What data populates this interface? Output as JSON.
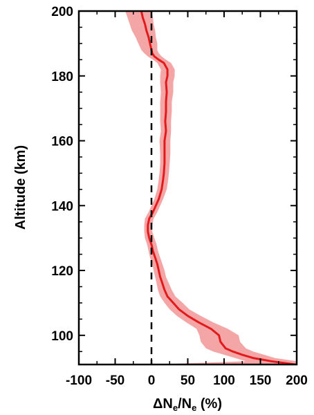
{
  "chart_data": {
    "type": "line",
    "xlabel": {
      "prefix": "ΔN",
      "sub1": "e",
      "mid": "/N",
      "sub2": "e",
      "suffix": " (%)"
    },
    "ylabel": "Altitude (km)",
    "xlim": [
      -100,
      200
    ],
    "ylim": [
      91,
      200
    ],
    "xticks": [
      -100,
      -50,
      0,
      50,
      100,
      150,
      200
    ],
    "yticks": [
      100,
      120,
      140,
      160,
      180,
      200
    ],
    "grid": false,
    "reference_line": {
      "x": 0,
      "style": "dashed",
      "color": "#000000"
    },
    "series": [
      {
        "color": "#e31a1c",
        "band_color": "#f4a6a6",
        "points": [
          {
            "y": 91,
            "x": 198,
            "lo": 5,
            "hi": 200
          },
          {
            "y": 92,
            "x": 165,
            "lo": 130,
            "hi": 200
          },
          {
            "y": 93,
            "x": 140,
            "lo": 115,
            "hi": 170
          },
          {
            "y": 94,
            "x": 125,
            "lo": 100,
            "hi": 155
          },
          {
            "y": 95,
            "x": 112,
            "lo": 85,
            "hi": 140
          },
          {
            "y": 96,
            "x": 102,
            "lo": 75,
            "hi": 130
          },
          {
            "y": 98,
            "x": 95,
            "lo": 68,
            "hi": 122
          },
          {
            "y": 100,
            "x": 93,
            "lo": 66,
            "hi": 120
          },
          {
            "y": 102,
            "x": 82,
            "lo": 62,
            "hi": 105
          },
          {
            "y": 104,
            "x": 65,
            "lo": 48,
            "hi": 85
          },
          {
            "y": 106,
            "x": 50,
            "lo": 35,
            "hi": 68
          },
          {
            "y": 108,
            "x": 38,
            "lo": 25,
            "hi": 52
          },
          {
            "y": 110,
            "x": 30,
            "lo": 18,
            "hi": 43
          },
          {
            "y": 112,
            "x": 22,
            "lo": 12,
            "hi": 33
          },
          {
            "y": 114,
            "x": 18,
            "lo": 9,
            "hi": 28
          },
          {
            "y": 116,
            "x": 15,
            "lo": 7,
            "hi": 24
          },
          {
            "y": 118,
            "x": 12,
            "lo": 5,
            "hi": 20
          },
          {
            "y": 120,
            "x": 10,
            "lo": 3,
            "hi": 18
          },
          {
            "y": 122,
            "x": 8,
            "lo": 1,
            "hi": 15
          },
          {
            "y": 124,
            "x": 5,
            "lo": -2,
            "hi": 12
          },
          {
            "y": 126,
            "x": 2,
            "lo": -4,
            "hi": 9
          },
          {
            "y": 128,
            "x": 0,
            "lo": -6,
            "hi": 7
          },
          {
            "y": 130,
            "x": -3,
            "lo": -9,
            "hi": 4
          },
          {
            "y": 132,
            "x": -5,
            "lo": -10,
            "hi": 1
          },
          {
            "y": 134,
            "x": -5,
            "lo": -10,
            "hi": 1
          },
          {
            "y": 136,
            "x": -3,
            "lo": -9,
            "hi": 3
          },
          {
            "y": 138,
            "x": 2,
            "lo": -4,
            "hi": 8
          },
          {
            "y": 140,
            "x": 6,
            "lo": 0,
            "hi": 12
          },
          {
            "y": 142,
            "x": 10,
            "lo": 4,
            "hi": 16
          },
          {
            "y": 145,
            "x": 14,
            "lo": 8,
            "hi": 21
          },
          {
            "y": 148,
            "x": 16,
            "lo": 10,
            "hi": 23
          },
          {
            "y": 150,
            "x": 17,
            "lo": 11,
            "hi": 24
          },
          {
            "y": 153,
            "x": 18,
            "lo": 12,
            "hi": 25
          },
          {
            "y": 156,
            "x": 18,
            "lo": 12,
            "hi": 26
          },
          {
            "y": 160,
            "x": 18,
            "lo": 11,
            "hi": 26
          },
          {
            "y": 163,
            "x": 20,
            "lo": 13,
            "hi": 27
          },
          {
            "y": 166,
            "x": 19,
            "lo": 12,
            "hi": 27
          },
          {
            "y": 169,
            "x": 20,
            "lo": 12,
            "hi": 28
          },
          {
            "y": 172,
            "x": 20,
            "lo": 12,
            "hi": 28
          },
          {
            "y": 175,
            "x": 21,
            "lo": 13,
            "hi": 30
          },
          {
            "y": 178,
            "x": 20,
            "lo": 12,
            "hi": 30
          },
          {
            "y": 180,
            "x": 22,
            "lo": 12,
            "hi": 32
          },
          {
            "y": 182,
            "x": 22,
            "lo": 13,
            "hi": 32
          },
          {
            "y": 184,
            "x": 17,
            "lo": 8,
            "hi": 27
          },
          {
            "y": 185,
            "x": 10,
            "lo": 2,
            "hi": 20
          },
          {
            "y": 186,
            "x": 4,
            "lo": -5,
            "hi": 14
          },
          {
            "y": 187,
            "x": 1,
            "lo": -10,
            "hi": 10
          },
          {
            "y": 188,
            "x": 0,
            "lo": -14,
            "hi": 8
          },
          {
            "y": 190,
            "x": -2,
            "lo": -18,
            "hi": 8
          },
          {
            "y": 192,
            "x": -4,
            "lo": -22,
            "hi": 6
          },
          {
            "y": 194,
            "x": -7,
            "lo": -27,
            "hi": 5
          },
          {
            "y": 196,
            "x": -9,
            "lo": -30,
            "hi": 3
          },
          {
            "y": 198,
            "x": -12,
            "lo": -33,
            "hi": 2
          },
          {
            "y": 200,
            "x": -14,
            "lo": -36,
            "hi": 0
          }
        ]
      }
    ]
  }
}
